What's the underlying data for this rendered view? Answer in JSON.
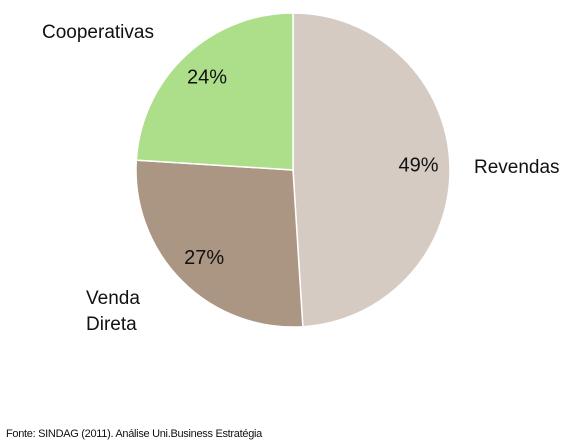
{
  "chart_data": {
    "type": "pie",
    "categories": [
      "Revendas",
      "Venda Direta",
      "Cooperativas"
    ],
    "values": [
      49,
      27,
      24
    ],
    "value_labels": [
      "49%",
      "27%",
      "24%"
    ],
    "colors": [
      "#d6cbc3",
      "#ab9583",
      "#addf8b"
    ],
    "source": "Fonte: SINDAG (2011). Análise Uni.Business Estratégia"
  }
}
